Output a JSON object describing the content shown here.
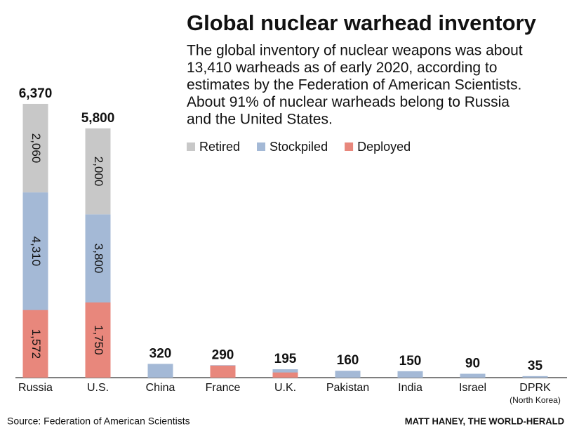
{
  "chart_data": {
    "type": "bar",
    "title": "Global nuclear warhead inventory",
    "subtitle": [
      "The global inventory of nuclear weapons was about",
      "13,410 warheads as of early 2020, according to",
      "estimates by the Federation of American Scientists.",
      "About 91% of nuclear warheads belong to Russia",
      "and the United States."
    ],
    "categories": [
      "Russia",
      "U.S.",
      "China",
      "France",
      "U.K.",
      "Pakistan",
      "India",
      "Israel",
      "DPRK"
    ],
    "category_notes": [
      null,
      null,
      null,
      null,
      null,
      null,
      null,
      null,
      "(North Korea)"
    ],
    "series": [
      {
        "name": "Retired",
        "color": "#c8c8c8",
        "mode": "stack",
        "values": [
          2060,
          2000,
          null,
          null,
          null,
          null,
          null,
          null,
          null
        ],
        "value_labels": [
          "2,060",
          "2,000",
          null,
          null,
          null,
          null,
          null,
          null,
          null
        ]
      },
      {
        "name": "Stockpiled",
        "color": "#a4b9d6",
        "mode": "base",
        "values": [
          4310,
          3800,
          320,
          290,
          195,
          160,
          150,
          90,
          35
        ],
        "value_labels": [
          "4,310",
          "3,800",
          null,
          null,
          null,
          null,
          null,
          null,
          null
        ]
      },
      {
        "name": "Deployed",
        "color": "#e8877c",
        "mode": "overlay",
        "values": [
          1572,
          1750,
          null,
          280,
          120,
          null,
          null,
          null,
          null
        ],
        "value_labels": [
          "1,572",
          "1,750",
          null,
          null,
          null,
          null,
          null,
          null,
          null
        ]
      }
    ],
    "totals": [
      6370,
      5800,
      320,
      290,
      195,
      160,
      150,
      90,
      35
    ],
    "total_labels": [
      "6,370",
      "5,800",
      "320",
      "290",
      "195",
      "160",
      "150",
      "90",
      "35"
    ],
    "ylim": [
      0,
      6500
    ],
    "source": "Source: Federation of American Scientists",
    "credit": "MATT HANEY, THE WORLD-HERALD"
  }
}
